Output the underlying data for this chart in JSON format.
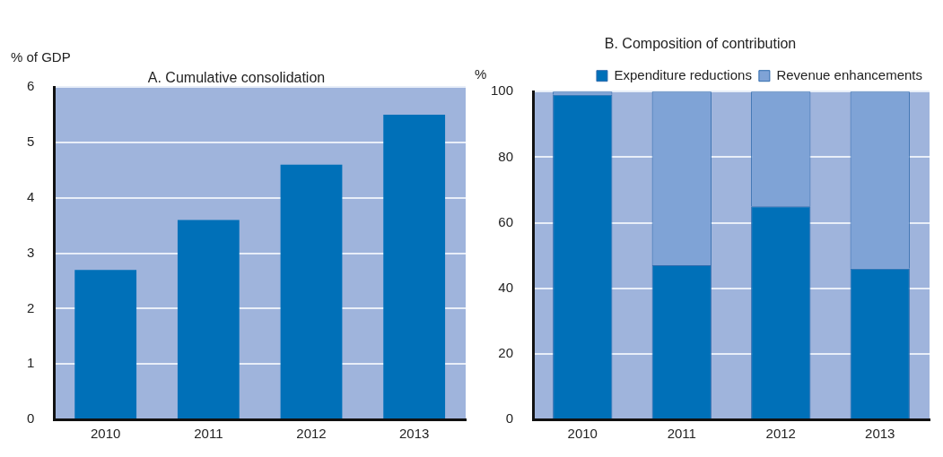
{
  "chart_data": [
    {
      "type": "bar",
      "title": "A. Cumulative consolidation",
      "ylabel": "% of GDP",
      "categories": [
        "2010",
        "2011",
        "2012",
        "2013"
      ],
      "series": [
        {
          "color": "#0070b8",
          "values": [
            2.7,
            3.6,
            4.6,
            5.5
          ]
        }
      ],
      "ylim": [
        0,
        6
      ],
      "yticks": [
        0,
        1,
        2,
        3,
        4,
        5,
        6
      ],
      "grid": "y",
      "legend": false
    },
    {
      "type": "bar",
      "title": "B. Composition of contribution",
      "ylabel": "%",
      "categories": [
        "2010",
        "2011",
        "2012",
        "2013"
      ],
      "stacked": true,
      "series": [
        {
          "name": "Expenditure reductions",
          "color": "#0070b8",
          "values": [
            99,
            47,
            65,
            46
          ]
        },
        {
          "name": "Revenue enhancements",
          "color": "#7fa3d6",
          "values": [
            1,
            53,
            35,
            54
          ]
        }
      ],
      "ylim": [
        0,
        100
      ],
      "yticks": [
        0,
        20,
        40,
        60,
        80,
        100
      ],
      "grid": "y",
      "legend": "top"
    }
  ]
}
